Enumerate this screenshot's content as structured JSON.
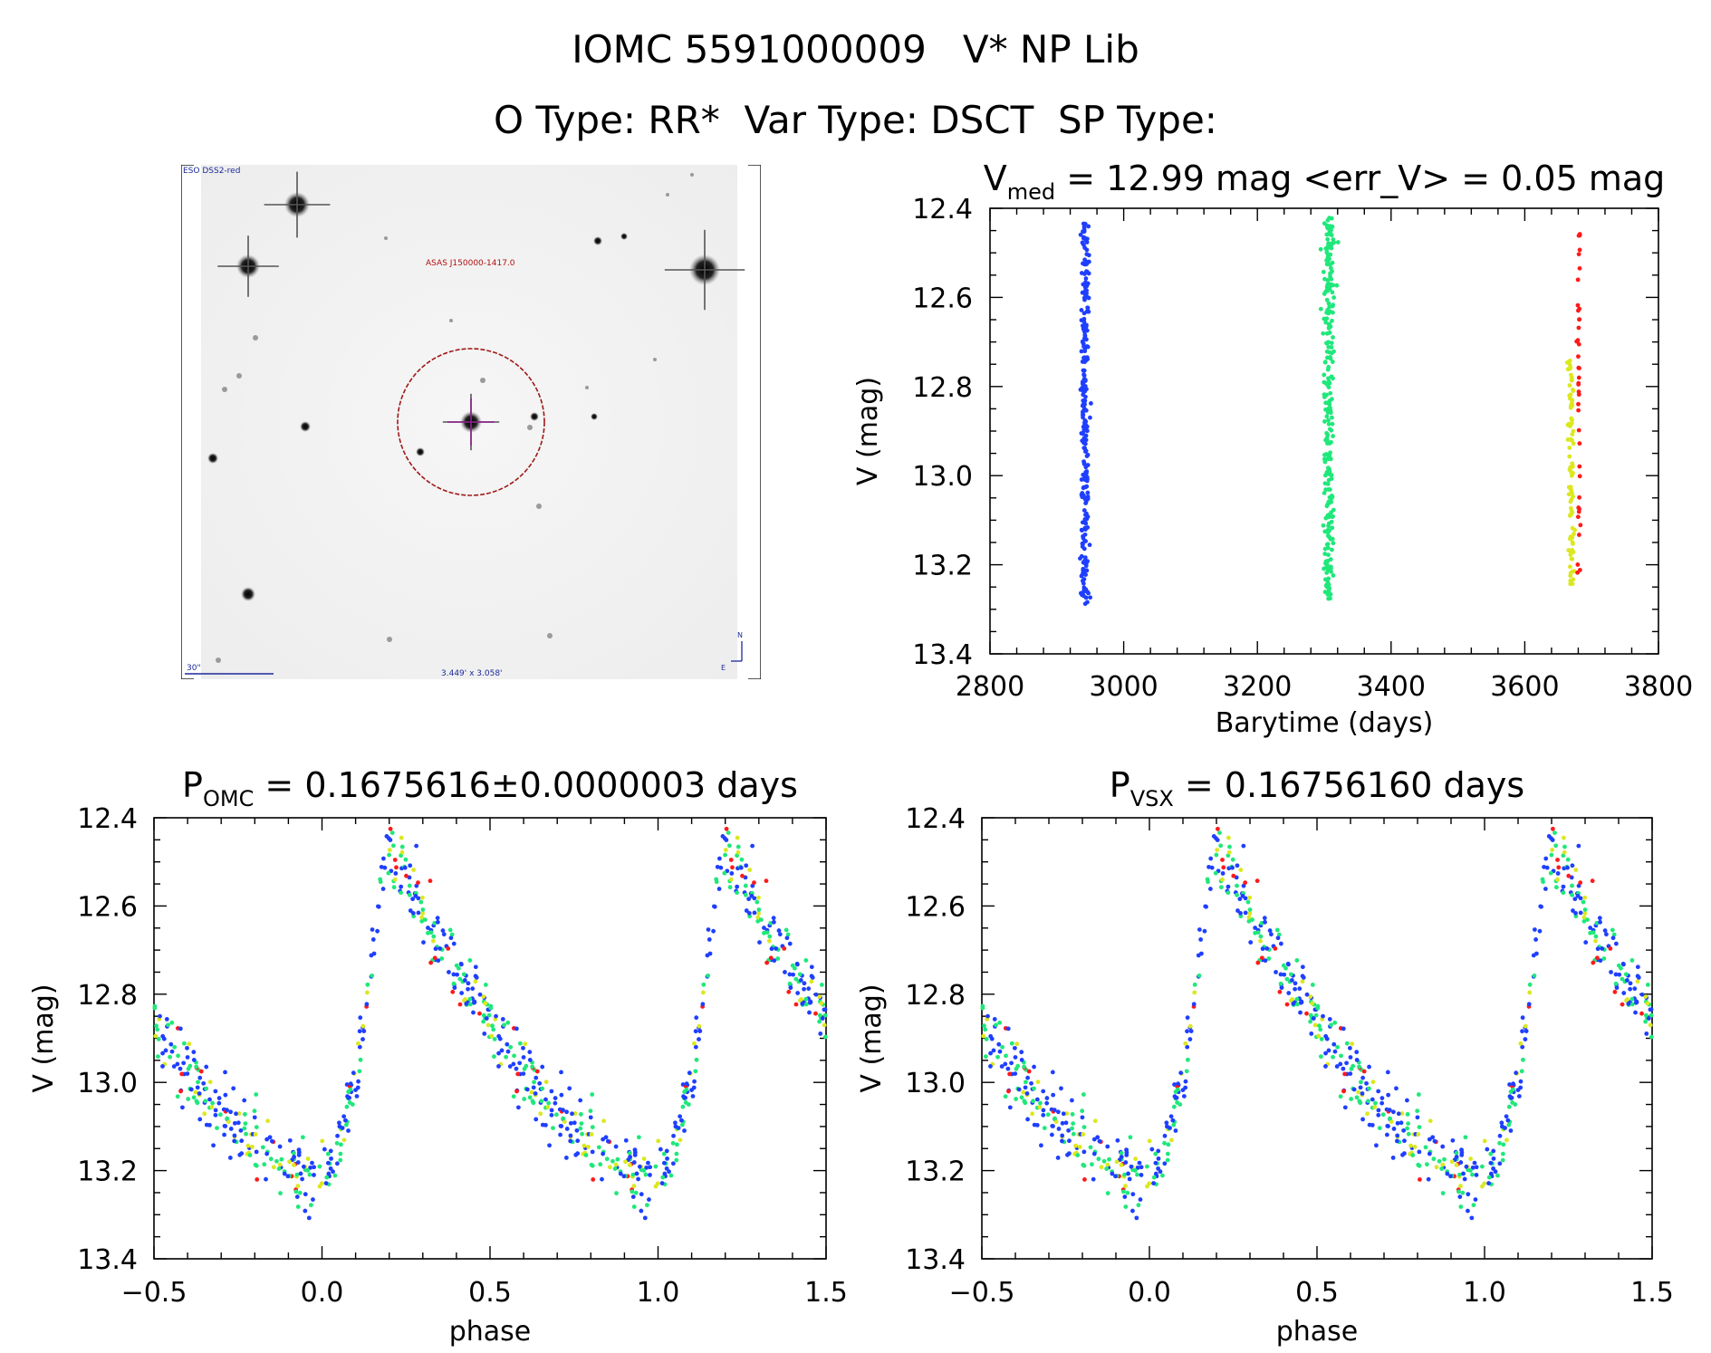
{
  "header": {
    "title_line1": "IOMC 5591000009   V* NP Lib",
    "title_line2": "O Type: RR*  Var Type: DSCT  SP Type:"
  },
  "image_panel": {
    "corner_label": "ESO DSS2-red",
    "source_label": "ASAS J150000-1417.0",
    "scale_label": "30\"",
    "fov_label": "3.449' x 3.058'",
    "north_label": "N",
    "east_label": "E"
  },
  "colors": {
    "season1": "#1f3fff",
    "season2": "#1fe87a",
    "season3_yellow": "#dbe81f",
    "season3_red": "#ff1a1a",
    "circle": "#a01818",
    "crosshair": "#8a1a8a",
    "label_blue": "#1c2a9a",
    "label_red": "#b01010"
  },
  "chart_data": [
    {
      "type": "scatter",
      "title_main": "V",
      "title_sub": "med",
      "title_rest": " = 12.99 mag <err_V> = 0.05 mag",
      "xlabel": "Barytime (days)",
      "ylabel": "V (mag)",
      "xlim": [
        2800,
        3800
      ],
      "ylim": [
        13.4,
        12.4
      ],
      "xticks": [
        2800,
        3000,
        3200,
        3400,
        3600,
        3800
      ],
      "yticks": [
        12.4,
        12.6,
        12.8,
        13.0,
        13.2,
        13.4
      ],
      "xtick_labels": [
        "2800",
        "3000",
        "3200",
        "3400",
        "3600",
        "3800"
      ],
      "ytick_labels": [
        "12.4",
        "12.6",
        "12.8",
        "13.0",
        "13.2",
        "13.4"
      ],
      "series": [
        {
          "color": "#1f3fff",
          "x_center": 2942,
          "x_spread": 5,
          "y_range": [
            12.43,
            13.29
          ]
        },
        {
          "color": "#1fe87a",
          "x_center": 3307,
          "x_spread": 6,
          "y_range": [
            12.42,
            13.28
          ]
        },
        {
          "color": "#dbe81f",
          "x_center": 3669,
          "x_spread": 4,
          "y_range": [
            12.74,
            13.26
          ]
        },
        {
          "color": "#ff1a1a",
          "x_center": 3681,
          "x_spread": 2,
          "y_range": [
            12.44,
            13.22
          ]
        }
      ]
    },
    {
      "type": "scatter",
      "title_main": "P",
      "title_sub": "OMC",
      "title_rest": " = 0.1675616±0.0000003 days",
      "xlabel": "phase",
      "ylabel": "V (mag)",
      "xlim": [
        -0.5,
        1.5
      ],
      "ylim": [
        13.4,
        12.4
      ],
      "xticks": [
        -0.5,
        0.0,
        0.5,
        1.0,
        1.5
      ],
      "yticks": [
        12.4,
        12.6,
        12.8,
        13.0,
        13.2,
        13.4
      ],
      "xtick_labels": [
        "−0.5",
        "0.0",
        "0.5",
        "1.0",
        "1.5"
      ],
      "ytick_labels": [
        "12.4",
        "12.6",
        "12.8",
        "13.0",
        "13.2",
        "13.4"
      ],
      "light_curve": {
        "max_phase": 0.19,
        "max_mag": 12.45,
        "min_phase": 0.0,
        "min_mag": 13.22,
        "mid_phase": 0.6,
        "mid_mag": 13.05,
        "scatter": 0.04
      }
    },
    {
      "type": "scatter",
      "title_main": "P",
      "title_sub": "VSX",
      "title_rest": " = 0.16756160 days",
      "xlabel": "phase",
      "ylabel": "V (mag)",
      "xlim": [
        -0.5,
        1.5
      ],
      "ylim": [
        13.4,
        12.4
      ],
      "xticks": [
        -0.5,
        0.0,
        0.5,
        1.0,
        1.5
      ],
      "yticks": [
        12.4,
        12.6,
        12.8,
        13.0,
        13.2,
        13.4
      ],
      "xtick_labels": [
        "−0.5",
        "0.0",
        "0.5",
        "1.0",
        "1.5"
      ],
      "ytick_labels": [
        "12.4",
        "12.6",
        "12.8",
        "13.0",
        "13.2",
        "13.4"
      ],
      "light_curve": {
        "max_phase": 0.19,
        "max_mag": 12.45,
        "min_phase": 0.0,
        "min_mag": 13.22,
        "mid_phase": 0.6,
        "mid_mag": 13.05,
        "scatter": 0.04
      }
    }
  ]
}
